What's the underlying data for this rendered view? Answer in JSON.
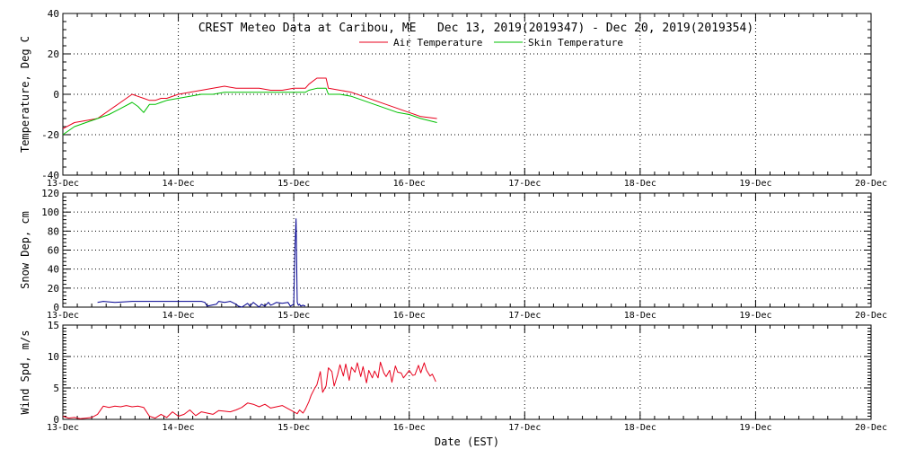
{
  "title": "CREST Meteo Data at Caribou, ME   Dec 13, 2019(2019347) - Dec 20, 2019(2019354)",
  "xlabel": "Date (EST)",
  "colors": {
    "air": "#e8001c",
    "skin": "#00c000",
    "snow": "#000090",
    "wind": "#e8001c",
    "grid": "#000000"
  },
  "chart_data": [
    {
      "type": "line",
      "panel": "temperature",
      "ylabel": "Temperature, Deg C",
      "ylim": [
        -40,
        40
      ],
      "yticks": [
        -40,
        -20,
        0,
        20,
        40
      ],
      "xlim": [
        13,
        20
      ],
      "xticks": [
        "13-Dec",
        "14-Dec",
        "15-Dec",
        "16-Dec",
        "17-Dec",
        "18-Dec",
        "19-Dec",
        "20-Dec"
      ],
      "grid": true,
      "legend": "top-center",
      "series": [
        {
          "name": "Air Temperature",
          "x": [
            13.0,
            13.1,
            13.2,
            13.3,
            13.4,
            13.5,
            13.6,
            13.65,
            13.7,
            13.75,
            13.8,
            13.85,
            13.9,
            14.0,
            14.1,
            14.2,
            14.3,
            14.4,
            14.5,
            14.6,
            14.7,
            14.8,
            14.9,
            15.0,
            15.1,
            15.13,
            15.2,
            15.28,
            15.3,
            15.4,
            15.5,
            15.6,
            15.7,
            15.8,
            15.9,
            16.0,
            16.1,
            16.24
          ],
          "y": [
            -17,
            -14,
            -13,
            -12,
            -8,
            -4,
            0,
            -1,
            -2,
            -3,
            -3,
            -2,
            -2,
            0,
            1,
            2,
            3,
            4,
            3,
            3,
            3,
            2,
            2,
            3,
            3,
            5,
            8,
            8,
            3,
            2,
            1,
            -1,
            -3,
            -5,
            -7,
            -9,
            -11,
            -12
          ]
        },
        {
          "name": "Skin Temperature",
          "x": [
            13.0,
            13.1,
            13.2,
            13.3,
            13.4,
            13.5,
            13.6,
            13.65,
            13.7,
            13.75,
            13.8,
            13.85,
            13.9,
            14.0,
            14.1,
            14.2,
            14.3,
            14.4,
            14.5,
            14.6,
            14.7,
            14.8,
            14.9,
            15.0,
            15.1,
            15.13,
            15.2,
            15.28,
            15.3,
            15.4,
            15.5,
            15.6,
            15.7,
            15.8,
            15.9,
            16.0,
            16.1,
            16.24
          ],
          "y": [
            -20,
            -16,
            -14,
            -12,
            -10,
            -7,
            -4,
            -6,
            -9,
            -5,
            -5,
            -4,
            -3,
            -2,
            -1,
            0,
            0,
            1,
            1,
            1,
            1,
            1,
            1,
            1,
            1,
            2,
            3,
            3,
            0,
            0,
            -1,
            -3,
            -5,
            -7,
            -9,
            -10,
            -12,
            -14
          ]
        }
      ]
    },
    {
      "type": "line",
      "panel": "snow-depth",
      "ylabel": "Snow Dep, cm",
      "ylim": [
        0,
        120
      ],
      "yticks": [
        0,
        20,
        40,
        60,
        80,
        100,
        120
      ],
      "xlim": [
        13,
        20
      ],
      "xticks": [
        "13-Dec",
        "14-Dec",
        "15-Dec",
        "16-Dec",
        "17-Dec",
        "18-Dec",
        "19-Dec",
        "20-Dec"
      ],
      "grid": true,
      "series": [
        {
          "name": "Snow Depth",
          "x": [
            13.3,
            13.35,
            13.45,
            13.6,
            13.8,
            14.0,
            14.2,
            14.23,
            14.25,
            14.33,
            14.35,
            14.4,
            14.45,
            14.5,
            14.52,
            14.55,
            14.6,
            14.62,
            14.65,
            14.7,
            14.72,
            14.75,
            14.78,
            14.8,
            14.82,
            14.85,
            14.9,
            14.95,
            14.97,
            15.0,
            15.01,
            15.02,
            15.03,
            15.04,
            15.05,
            15.06,
            15.08,
            15.1
          ],
          "y": [
            5,
            6,
            5,
            6,
            6,
            6,
            6,
            5,
            1,
            3,
            6,
            5,
            6,
            3,
            1,
            0,
            4,
            1,
            5,
            0,
            3,
            1,
            5,
            2,
            3,
            5,
            4,
            5,
            1,
            3,
            60,
            93,
            5,
            2,
            3,
            1,
            2,
            1
          ]
        }
      ]
    },
    {
      "type": "line",
      "panel": "wind-speed",
      "ylabel": "Wind Spd, m/s",
      "ylim": [
        0,
        15
      ],
      "yticks": [
        0,
        5,
        10,
        15
      ],
      "xlim": [
        13,
        20
      ],
      "xticks": [
        "13-Dec",
        "14-Dec",
        "15-Dec",
        "16-Dec",
        "17-Dec",
        "18-Dec",
        "19-Dec",
        "20-Dec"
      ],
      "grid": true,
      "series": [
        {
          "name": "Wind Speed",
          "x": [
            13.0,
            13.05,
            13.1,
            13.15,
            13.2,
            13.25,
            13.3,
            13.35,
            13.4,
            13.45,
            13.5,
            13.55,
            13.6,
            13.65,
            13.7,
            13.75,
            13.8,
            13.85,
            13.9,
            13.95,
            14.0,
            14.05,
            14.1,
            14.15,
            14.2,
            14.25,
            14.3,
            14.35,
            14.4,
            14.45,
            14.5,
            14.55,
            14.6,
            14.65,
            14.7,
            14.75,
            14.8,
            14.85,
            14.9,
            14.95,
            15.0,
            15.03,
            15.05,
            15.08,
            15.1,
            15.13,
            15.15,
            15.18,
            15.2,
            15.23,
            15.25,
            15.28,
            15.3,
            15.33,
            15.35,
            15.38,
            15.4,
            15.43,
            15.45,
            15.48,
            15.5,
            15.53,
            15.55,
            15.58,
            15.6,
            15.63,
            15.65,
            15.68,
            15.7,
            15.73,
            15.75,
            15.78,
            15.8,
            15.83,
            15.85,
            15.88,
            15.9,
            15.93,
            15.95,
            15.98,
            16.0,
            16.03,
            16.05,
            16.08,
            16.1,
            16.13,
            16.15,
            16.18,
            16.2,
            16.23
          ],
          "y": [
            0.5,
            0.2,
            0.3,
            0.1,
            0.2,
            0.3,
            0.8,
            2.1,
            1.9,
            2.1,
            2.0,
            2.2,
            2.0,
            2.1,
            1.9,
            0.5,
            0.2,
            0.8,
            0.3,
            1.2,
            0.5,
            0.8,
            1.5,
            0.6,
            1.2,
            1.0,
            0.8,
            1.4,
            1.3,
            1.2,
            1.5,
            1.9,
            2.6,
            2.4,
            2.0,
            2.4,
            1.8,
            2.0,
            2.2,
            1.7,
            1.2,
            0.9,
            1.5,
            1.0,
            1.6,
            2.8,
            3.8,
            4.9,
            5.5,
            7.6,
            4.3,
            5.3,
            8.2,
            7.6,
            5.3,
            7.1,
            8.7,
            6.9,
            8.8,
            6.2,
            8.3,
            7.5,
            9.0,
            6.8,
            8.4,
            5.8,
            7.8,
            6.6,
            7.7,
            6.6,
            9.1,
            7.4,
            6.8,
            7.8,
            5.9,
            8.5,
            7.5,
            7.4,
            6.6,
            7.3,
            7.8,
            7.0,
            7.1,
            8.6,
            7.4,
            9.0,
            7.8,
            6.9,
            7.2,
            6.0
          ]
        }
      ]
    }
  ]
}
